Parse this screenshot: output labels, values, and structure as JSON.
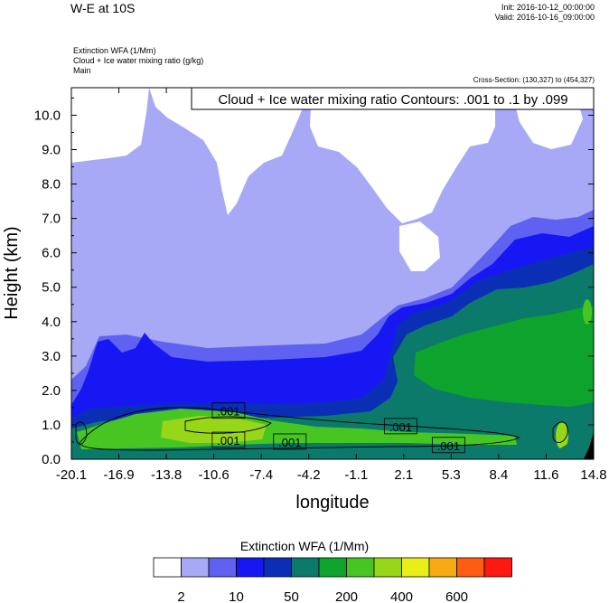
{
  "header": {
    "title": "W-E at 10S",
    "init": "Init: 2016-10-12_00:00:00",
    "valid": "Valid: 2016-10-16_09:00:00",
    "field1": "Extinction WFA   (1/Mm)",
    "field2": "Cloud + Ice water mixing ratio   (g/kg)",
    "field3": "Main",
    "cross_section": "Cross-Section: (130,327) to (454,327)"
  },
  "chart_data": {
    "type": "heatmap",
    "contour_label": "Cloud + Ice water mixing ratio Contours: .001 to .1 by .099",
    "xlabel": "longitude",
    "ylabel": "Height (km)",
    "x_ticks": [
      "-20.1",
      "-16.9",
      "-13.8",
      "-10.6",
      "-7.4",
      "-4.2",
      "-1.1",
      "2.1",
      "5.3",
      "8.4",
      "11.6",
      "14.8"
    ],
    "xlim": [
      -20.1,
      14.8
    ],
    "y_ticks": [
      "0.0",
      "1.0",
      "2.0",
      "3.0",
      "4.0",
      "5.0",
      "6.0",
      "7.0",
      "8.0",
      "9.0",
      "10.0"
    ],
    "ylim": [
      0,
      10.8
    ],
    "grid": false,
    "contour_labels": [
      {
        "text": ".001",
        "lon": -9.6,
        "height": 1.4
      },
      {
        "text": ".001",
        "lon": -9.6,
        "height": 0.55
      },
      {
        "text": ".001",
        "lon": -5.5,
        "height": 0.5
      },
      {
        "text": ".001",
        "lon": 1.9,
        "height": 0.95
      },
      {
        "text": ".001",
        "lon": 5.1,
        "height": 0.4
      }
    ],
    "colorbar": {
      "title": "Extinction WFA  (1/Mm)",
      "colors": [
        "#ffffff",
        "#a7a9f6",
        "#5f62f0",
        "#1717f4",
        "#0a2fb5",
        "#0b7a6a",
        "#0ea32c",
        "#47c623",
        "#98d61a",
        "#e9ee16",
        "#f7aa13",
        "#fb5e12",
        "#fd1812"
      ],
      "tick_labels": [
        "2",
        "10",
        "50",
        "200",
        "400",
        "600"
      ]
    }
  }
}
